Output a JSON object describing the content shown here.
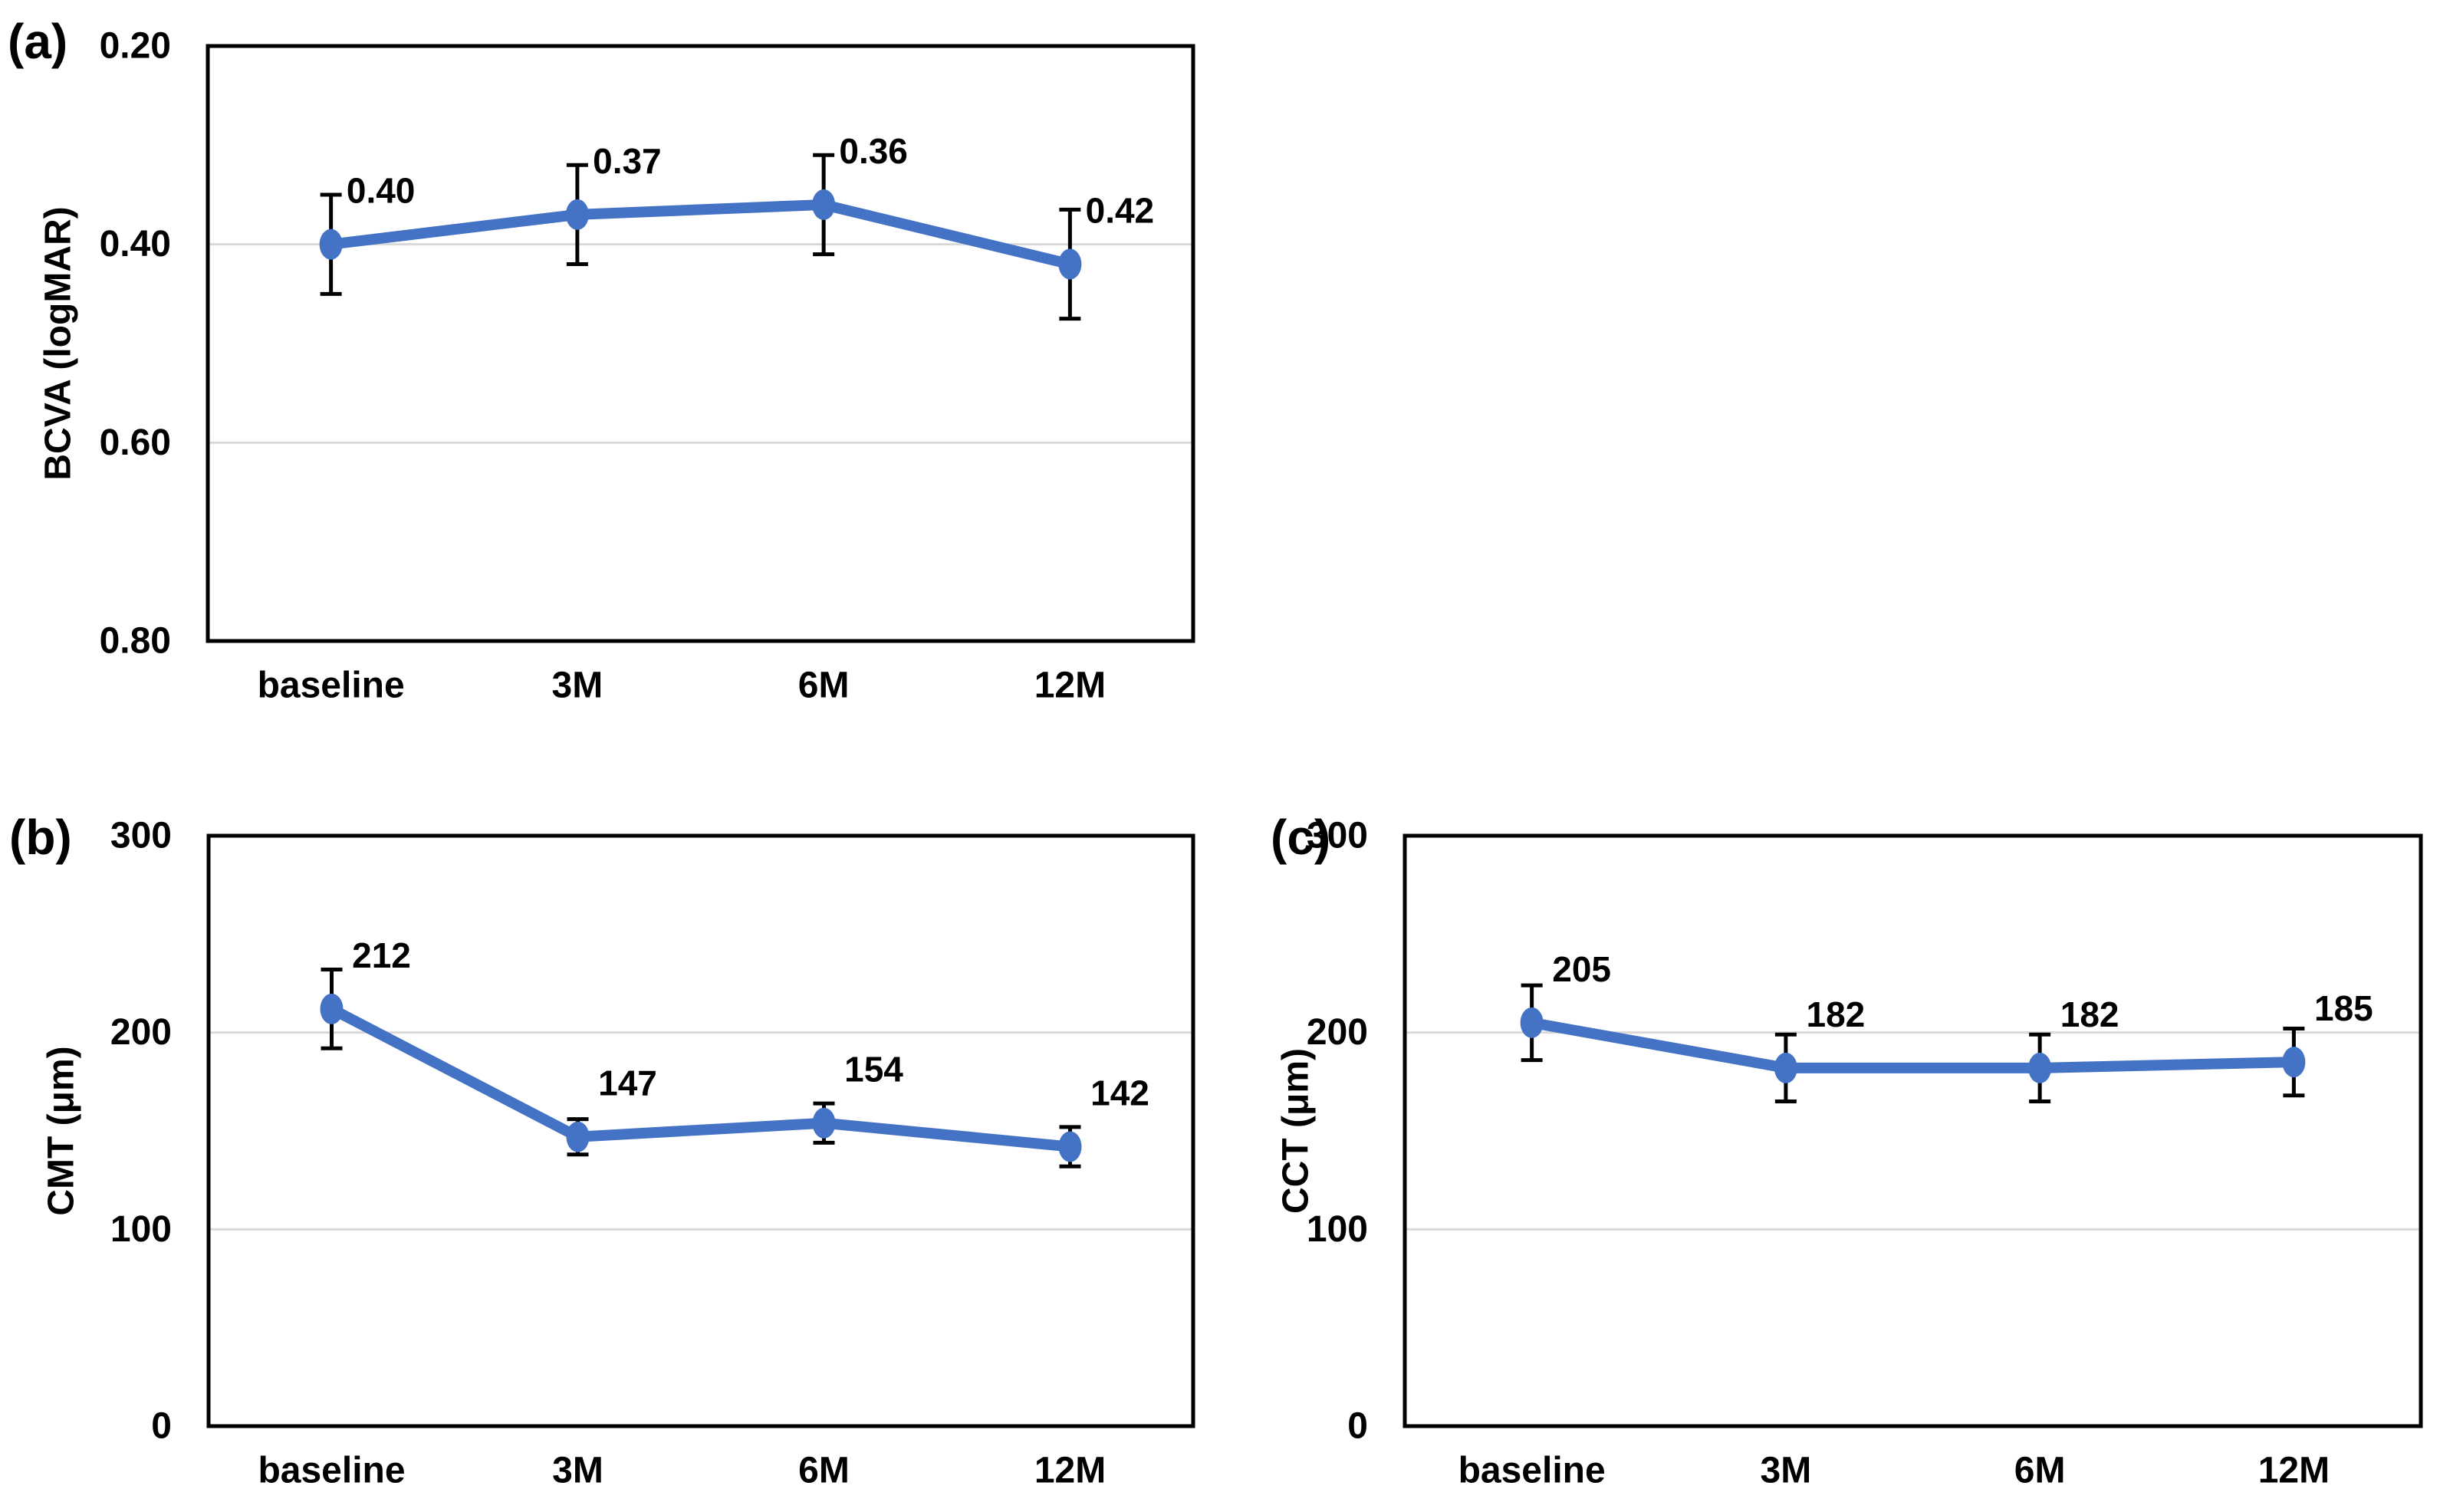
{
  "figure": {
    "background": "#ffffff",
    "accent_blue": "#4472C4",
    "gridline_color": "#D9D9D9",
    "axis_color": "#000000",
    "text_color": "#000000"
  },
  "chart_data": [
    {
      "panel_label": "(a)",
      "type": "line",
      "title": "",
      "ylabel": "BCVA (logMAR)",
      "xlabel": "",
      "categories": [
        "baseline",
        "3M",
        "6M",
        "12M"
      ],
      "series": [
        {
          "name": "BCVA",
          "color": "#4472C4",
          "values": [
            0.4,
            0.37,
            0.36,
            0.42
          ],
          "value_labels": [
            "0.40",
            "0.37",
            "0.36",
            "0.42"
          ],
          "errors": [
            0.05,
            0.05,
            0.05,
            0.055
          ]
        }
      ],
      "y_axis": {
        "direction": "inverted",
        "top": 0.2,
        "bottom": 0.8,
        "ticks": [
          {
            "v": 0.2,
            "label": "0.20"
          },
          {
            "v": 0.4,
            "label": "0.40"
          },
          {
            "v": 0.6,
            "label": "0.60"
          },
          {
            "v": 0.8,
            "label": "0.80"
          }
        ]
      },
      "grid": "horizontal-light",
      "legend": "none"
    },
    {
      "panel_label": "(b)",
      "type": "line",
      "title": "",
      "ylabel": "CMT (μm)",
      "xlabel": "",
      "categories": [
        "baseline",
        "3M",
        "6M",
        "12M"
      ],
      "series": [
        {
          "name": "CMT",
          "color": "#4472C4",
          "values": [
            212,
            147,
            154,
            142
          ],
          "value_labels": [
            "212",
            "147",
            "154",
            "142"
          ],
          "errors": [
            20,
            9,
            10,
            10
          ]
        }
      ],
      "y_axis": {
        "direction": "normal",
        "top": 300,
        "bottom": 0,
        "ticks": [
          {
            "v": 300,
            "label": "300"
          },
          {
            "v": 200,
            "label": "200"
          },
          {
            "v": 100,
            "label": "100"
          },
          {
            "v": 0,
            "label": "0"
          }
        ]
      },
      "grid": "horizontal-light",
      "legend": "none"
    },
    {
      "panel_label": "(c)",
      "type": "line",
      "title": "",
      "ylabel": "CCT (μm)",
      "xlabel": "",
      "categories": [
        "baseline",
        "3M",
        "6M",
        "12M"
      ],
      "series": [
        {
          "name": "CCT",
          "color": "#4472C4",
          "values": [
            205,
            182,
            182,
            185
          ],
          "value_labels": [
            "205",
            "182",
            "182",
            "185"
          ],
          "errors": [
            19,
            17,
            17,
            17
          ]
        }
      ],
      "y_axis": {
        "direction": "normal",
        "top": 300,
        "bottom": 0,
        "ticks": [
          {
            "v": 300,
            "label": "300"
          },
          {
            "v": 200,
            "label": "200"
          },
          {
            "v": 100,
            "label": "100"
          },
          {
            "v": 0,
            "label": "0"
          }
        ]
      },
      "grid": "horizontal-light",
      "legend": "none"
    }
  ]
}
